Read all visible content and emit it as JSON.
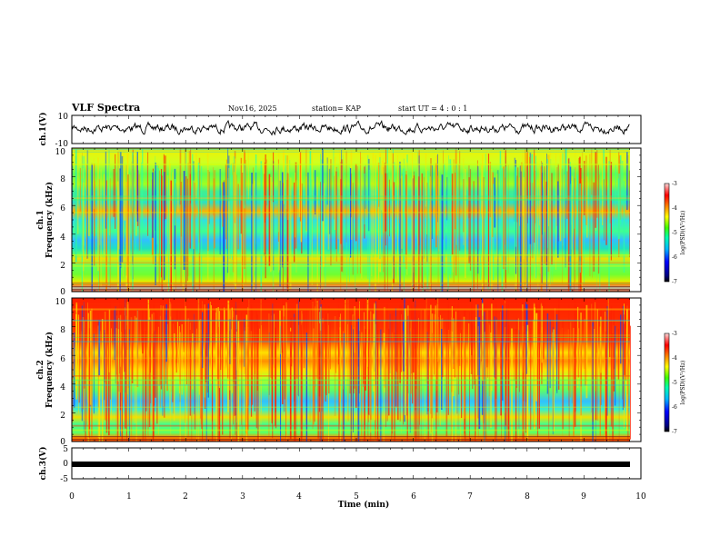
{
  "header": {
    "title": "VLF Spectra",
    "date": "Nov.16, 2025",
    "station": "station= KAP",
    "start": "start  UT =   4 : 0  : 1"
  },
  "chart_data": [
    {
      "type": "line",
      "name": "ch1-waveform",
      "ylabel": "ch.1(V)",
      "ylim": [
        -10,
        10
      ],
      "ytick_labels": [
        "10",
        "-10"
      ],
      "x_range_min": [
        0,
        9.83
      ]
    },
    {
      "type": "heatmap",
      "name": "ch1-spectrogram",
      "ylabel_line1": "ch.1",
      "ylabel_line2": "Frequency (kHz)",
      "ylim": [
        0,
        10
      ],
      "ytick_labels": [
        "0",
        "2",
        "4",
        "6",
        "8",
        "10"
      ],
      "colorbar": {
        "label": "log(PSD)(V²/Hz)",
        "range": [
          -7,
          -3
        ],
        "tick_labels": [
          "-3",
          "-4",
          "-5",
          "-6",
          "-7"
        ]
      }
    },
    {
      "type": "heatmap",
      "name": "ch2-spectrogram",
      "ylabel_line1": "ch.2",
      "ylabel_line2": "Frequency (kHz)",
      "ylim": [
        0,
        10
      ],
      "ytick_labels": [
        "0",
        "2",
        "4",
        "6",
        "8",
        "10"
      ],
      "colorbar": {
        "label": "log(PSD)(V²/Hz)",
        "range": [
          -7,
          -3
        ],
        "tick_labels": [
          "-3",
          "-4",
          "-5",
          "-6",
          "-7"
        ]
      }
    },
    {
      "type": "line",
      "name": "ch3-waveform",
      "ylabel": "ch.3(V)",
      "ylim": [
        -5,
        5
      ],
      "ytick_labels": [
        "5",
        "0",
        "-5"
      ]
    }
  ],
  "xaxis": {
    "label": "Time (min)",
    "range": [
      0,
      10
    ],
    "tick_labels": [
      "0",
      "1",
      "2",
      "3",
      "4",
      "5",
      "6",
      "7",
      "8",
      "9",
      "10"
    ]
  }
}
